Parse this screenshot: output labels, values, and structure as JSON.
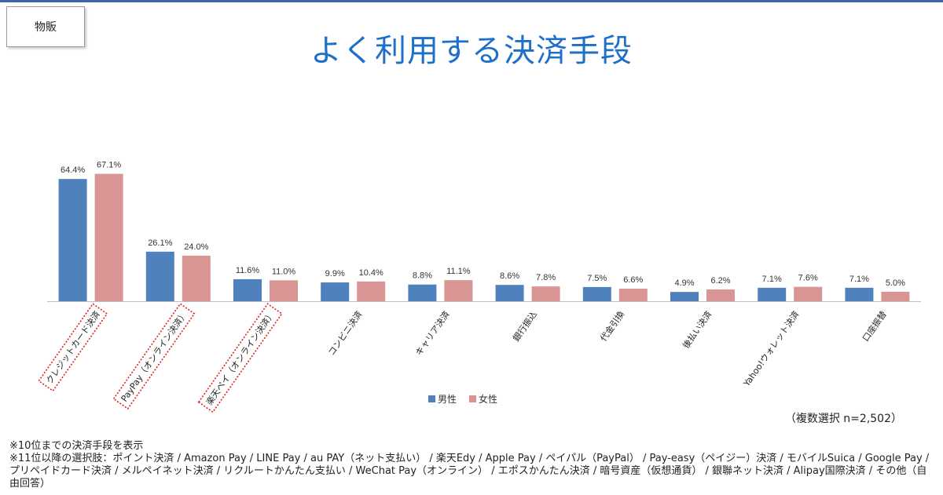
{
  "tag": "物販",
  "title": "よく利用する決済手段",
  "note": "（複数選択 n=2,502）",
  "footnotes": [
    "※10位までの決済手段を表示",
    "※11位以降の選択肢：ポイント決済 / Amazon Pay / LINE Pay / au PAY（ネット支払い） / 楽天Edy / Apple Pay / ペイパル（PayPal） / Pay-easy（ペイジー）決済 / モバイルSuica / Google Pay / プリペイドカード決済 / メルペイネット決済 / リクルートかんたん支払い / WeChat Pay（オンライン） / エポスかんたん決済 / 暗号資産（仮想通貨） / 銀聯ネット決済 / Alipay国際決済 / その他（自由回答）"
  ],
  "chart_data": {
    "type": "bar",
    "categories": [
      "クレジットカード決済",
      "PayPay（オンライン決済）",
      "楽天ペイ（オンライン決済）",
      "コンビニ決済",
      "キャリア決済",
      "銀行振込",
      "代金引換",
      "後払い決済",
      "Yahoo!ウォレット決済",
      "口座振替"
    ],
    "highlighted_categories": [
      0,
      1,
      2
    ],
    "series": [
      {
        "name": "男性",
        "color": "#4f81bd",
        "values": [
          64.4,
          26.1,
          11.6,
          9.9,
          8.8,
          8.6,
          7.5,
          4.9,
          7.1,
          7.1
        ],
        "labels": [
          "64.4%",
          "26.1%",
          "11.6%",
          "9.9%",
          "8.8%",
          "8.6%",
          "7.5%",
          "4.9%",
          "7.1%",
          "7.1%"
        ]
      },
      {
        "name": "女性",
        "color": "#d99594",
        "values": [
          67.1,
          24.0,
          11.0,
          10.4,
          11.1,
          7.8,
          6.6,
          6.2,
          7.6,
          5.0
        ],
        "labels": [
          "67.1%",
          "24.0%",
          "11.0%",
          "10.4%",
          "11.1%",
          "7.8%",
          "6.6%",
          "6.2%",
          "7.6%",
          "5.0%"
        ]
      }
    ],
    "ylim": [
      0,
      70
    ],
    "legend_position": "bottom",
    "grid": false,
    "highlight_color": "#e02020"
  }
}
